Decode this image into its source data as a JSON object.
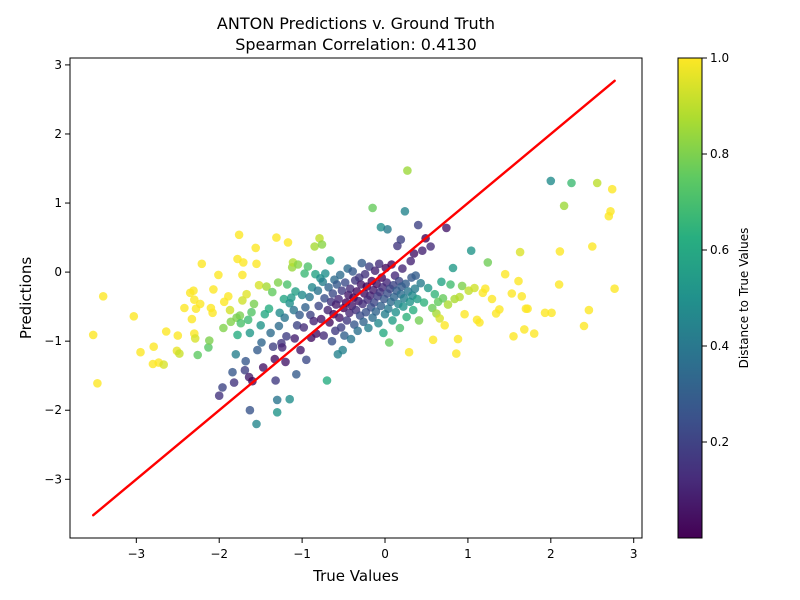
{
  "chart_data": {
    "type": "scatter",
    "title": "ANTON Predictions v. Ground Truth",
    "subtitle": "Spearman Correlation: 0.4130",
    "xlabel": "True Values",
    "ylabel": "Predictions",
    "xlim": [
      -3.8,
      3.1
    ],
    "ylim": [
      -3.85,
      3.1
    ],
    "xticks": [
      -3,
      -2,
      -1,
      0,
      1,
      2,
      3
    ],
    "xtick_labels": [
      "−3",
      "−2",
      "−1",
      "0",
      "1",
      "2",
      "3"
    ],
    "yticks": [
      -3,
      -2,
      -1,
      0,
      1,
      2,
      3
    ],
    "ytick_labels": [
      "−3",
      "−2",
      "−1",
      "0",
      "1",
      "2",
      "3"
    ],
    "grid": false,
    "colormap": "viridis",
    "point_alpha": 0.8,
    "colorbar": {
      "label": "Distance to True Values",
      "range": [
        0.0,
        1.0
      ],
      "ticks": [
        0.2,
        0.4,
        0.6,
        0.8,
        1.0
      ],
      "tick_labels": [
        "0.2",
        "0.4",
        "0.6",
        "0.8",
        "1.0"
      ]
    },
    "reference_line": {
      "x": [
        -3.52,
        2.77
      ],
      "y": [
        -3.52,
        2.77
      ],
      "color": "#ff0000"
    },
    "points": [
      [
        -3.52,
        -0.91
      ],
      [
        -3.47,
        -1.61
      ],
      [
        -3.4,
        -0.35
      ],
      [
        -3.03,
        -0.64
      ],
      [
        -2.95,
        -1.16
      ],
      [
        -2.8,
        -1.33
      ],
      [
        -2.79,
        -1.08
      ],
      [
        -2.73,
        -1.31
      ],
      [
        -2.67,
        -1.34
      ],
      [
        -2.64,
        -0.86
      ],
      [
        -2.5,
        -0.92
      ],
      [
        -2.51,
        -1.14
      ],
      [
        -2.48,
        -1.18
      ],
      [
        -2.42,
        -0.52
      ],
      [
        -2.35,
        -0.3
      ],
      [
        -2.33,
        -0.68
      ],
      [
        -2.31,
        -0.27
      ],
      [
        -2.3,
        -0.4
      ],
      [
        -2.3,
        -0.89
      ],
      [
        -2.29,
        -0.96
      ],
      [
        -2.28,
        -0.53
      ],
      [
        -2.26,
        -1.2
      ],
      [
        -2.23,
        -0.46
      ],
      [
        -2.21,
        0.12
      ],
      [
        -2.13,
        -1.09
      ],
      [
        -2.12,
        -0.99
      ],
      [
        -2.1,
        -0.52
      ],
      [
        -2.08,
        -0.59
      ],
      [
        -2.07,
        -0.25
      ],
      [
        -2.01,
        -0.04
      ],
      [
        -2.0,
        -1.79
      ],
      [
        -1.96,
        -1.67
      ],
      [
        -1.95,
        -0.81
      ],
      [
        -1.94,
        -0.43
      ],
      [
        -1.89,
        -0.35
      ],
      [
        -1.87,
        -0.55
      ],
      [
        -1.86,
        -0.72
      ],
      [
        -1.84,
        -1.45
      ],
      [
        -1.82,
        -1.6
      ],
      [
        -1.8,
        -1.19
      ],
      [
        -1.79,
        -0.66
      ],
      [
        -1.78,
        -0.91
      ],
      [
        -1.78,
        0.19
      ],
      [
        -1.76,
        0.54
      ],
      [
        -1.75,
        -0.63
      ],
      [
        -1.74,
        -0.74
      ],
      [
        -1.72,
        -0.41
      ],
      [
        -1.72,
        -0.04
      ],
      [
        -1.71,
        0.14
      ],
      [
        -1.69,
        -1.42
      ],
      [
        -1.68,
        -1.29
      ],
      [
        -1.67,
        -0.32
      ],
      [
        -1.65,
        -0.69
      ],
      [
        -1.64,
        -1.52
      ],
      [
        -1.63,
        -0.88
      ],
      [
        -1.63,
        -2.0
      ],
      [
        -1.61,
        -0.58
      ],
      [
        -1.6,
        -1.58
      ],
      [
        -1.58,
        -0.46
      ],
      [
        -1.56,
        0.35
      ],
      [
        -1.55,
        0.12
      ],
      [
        -1.55,
        -2.2
      ],
      [
        -1.54,
        -1.13
      ],
      [
        -1.52,
        -0.19
      ],
      [
        -1.5,
        -0.77
      ],
      [
        -1.49,
        -1.02
      ],
      [
        -1.47,
        -1.38
      ],
      [
        -1.45,
        -0.61
      ],
      [
        -1.43,
        -0.21
      ],
      [
        -1.4,
        -0.53
      ],
      [
        -1.38,
        -0.88
      ],
      [
        -1.36,
        -0.29
      ],
      [
        -1.35,
        -1.08
      ],
      [
        -1.33,
        -1.26
      ],
      [
        -1.32,
        -1.57
      ],
      [
        -1.31,
        0.5
      ],
      [
        -1.3,
        -1.85
      ],
      [
        -1.3,
        -2.03
      ],
      [
        -1.29,
        -0.15
      ],
      [
        -1.28,
        -0.78
      ],
      [
        -1.27,
        -0.59
      ],
      [
        -1.25,
        -1.03
      ],
      [
        -1.24,
        -1.09
      ],
      [
        -1.22,
        -0.39
      ],
      [
        -1.21,
        -0.66
      ],
      [
        -1.2,
        -1.3
      ],
      [
        -1.19,
        -0.93
      ],
      [
        -1.18,
        -0.18
      ],
      [
        -1.17,
        0.43
      ],
      [
        -1.15,
        -0.45
      ],
      [
        -1.15,
        -1.84
      ],
      [
        -1.13,
        -0.37
      ],
      [
        -1.12,
        0.07
      ],
      [
        -1.11,
        0.14
      ],
      [
        -1.1,
        -0.55
      ],
      [
        -1.09,
        -0.96
      ],
      [
        -1.08,
        -0.28
      ],
      [
        -1.07,
        -1.48
      ],
      [
        -1.06,
        -0.77
      ],
      [
        -1.05,
        0.11
      ],
      [
        -1.03,
        -0.62
      ],
      [
        -1.02,
        -1.13
      ],
      [
        -1.0,
        -0.33
      ],
      [
        -0.98,
        -0.8
      ],
      [
        -0.97,
        -0.02
      ],
      [
        -0.96,
        -0.51
      ],
      [
        -0.95,
        -1.27
      ],
      [
        -0.93,
        0.08
      ],
      [
        -0.91,
        -0.36
      ],
      [
        -0.9,
        -0.62
      ],
      [
        -0.89,
        -0.95
      ],
      [
        -0.88,
        -0.22
      ],
      [
        -0.86,
        -0.71
      ],
      [
        -0.85,
        0.37
      ],
      [
        -0.84,
        -0.03
      ],
      [
        -0.83,
        -0.89
      ],
      [
        -0.81,
        -0.27
      ],
      [
        -0.8,
        -0.49
      ],
      [
        -0.79,
        0.49
      ],
      [
        -0.78,
        -0.09
      ],
      [
        -0.77,
        -0.68
      ],
      [
        -0.76,
        0.4
      ],
      [
        -0.75,
        -0.14
      ],
      [
        -0.74,
        -0.92
      ],
      [
        -0.73,
        -0.38
      ],
      [
        -0.72,
        -0.02
      ],
      [
        -0.7,
        -1.57
      ],
      [
        -0.69,
        -0.55
      ],
      [
        -0.68,
        -0.22
      ],
      [
        -0.67,
        -0.73
      ],
      [
        -0.66,
        0.17
      ],
      [
        -0.65,
        -0.43
      ],
      [
        -0.64,
        -1.0
      ],
      [
        -0.63,
        -0.31
      ],
      [
        -0.62,
        -0.61
      ],
      [
        -0.61,
        -0.11
      ],
      [
        -0.6,
        -0.85
      ],
      [
        -0.59,
        -0.47
      ],
      [
        -0.58,
        -0.18
      ],
      [
        -0.57,
        -1.19
      ],
      [
        -0.56,
        -0.39
      ],
      [
        -0.55,
        -0.66
      ],
      [
        -0.54,
        -0.04
      ],
      [
        -0.53,
        -0.8
      ],
      [
        -0.52,
        -0.27
      ],
      [
        -0.51,
        -1.13
      ],
      [
        -0.5,
        -0.52
      ],
      [
        -0.49,
        -0.92
      ],
      [
        -0.48,
        -0.15
      ],
      [
        -0.47,
        -0.44
      ],
      [
        -0.46,
        -0.7
      ],
      [
        -0.45,
        0.05
      ],
      [
        -0.44,
        -0.33
      ],
      [
        -0.43,
        -0.59
      ],
      [
        -0.42,
        -0.24
      ],
      [
        -0.41,
        -0.97
      ],
      [
        -0.4,
        -0.49
      ],
      [
        -0.39,
        0.01
      ],
      [
        -0.38,
        -0.37
      ],
      [
        -0.37,
        -0.76
      ],
      [
        -0.36,
        -0.12
      ],
      [
        -0.35,
        -0.55
      ],
      [
        -0.34,
        -0.28
      ],
      [
        -0.33,
        -0.85
      ],
      [
        -0.32,
        -0.42
      ],
      [
        -0.31,
        -0.08
      ],
      [
        -0.3,
        -0.63
      ],
      [
        -0.29,
        -0.18
      ],
      [
        -0.28,
        0.13
      ],
      [
        -0.27,
        -0.46
      ],
      [
        -0.26,
        -0.72
      ],
      [
        -0.25,
        -0.31
      ],
      [
        -0.24,
        -0.03
      ],
      [
        -0.23,
        -0.58
      ],
      [
        -0.22,
        -0.21
      ],
      [
        -0.21,
        -0.4
      ],
      [
        -0.2,
        -0.81
      ],
      [
        -0.19,
        0.08
      ],
      [
        -0.18,
        -0.34
      ],
      [
        -0.17,
        -0.51
      ],
      [
        -0.16,
        -0.13
      ],
      [
        -0.15,
        -0.66
      ],
      [
        -0.15,
        0.93
      ],
      [
        -0.14,
        -0.26
      ],
      [
        -0.13,
        -0.44
      ],
      [
        -0.12,
        0.02
      ],
      [
        -0.11,
        -0.57
      ],
      [
        -0.1,
        -0.17
      ],
      [
        -0.09,
        -0.35
      ],
      [
        -0.08,
        -0.74
      ],
      [
        -0.07,
        0.12
      ],
      [
        -0.06,
        -0.29
      ],
      [
        -0.05,
        -0.49
      ],
      [
        -0.05,
        0.65
      ],
      [
        -0.04,
        -0.08
      ],
      [
        -0.03,
        -0.22
      ],
      [
        -0.02,
        -0.88
      ],
      [
        -0.01,
        -0.39
      ],
      [
        0.0,
        -0.61
      ],
      [
        0.01,
        0.06
      ],
      [
        0.02,
        -0.15
      ],
      [
        0.03,
        -0.31
      ],
      [
        0.03,
        0.62
      ],
      [
        0.04,
        -0.53
      ],
      [
        0.05,
        -1.02
      ],
      [
        0.06,
        -0.24
      ],
      [
        0.07,
        -0.43
      ],
      [
        0.08,
        0.11
      ],
      [
        0.09,
        -0.7
      ],
      [
        0.1,
        -0.19
      ],
      [
        0.11,
        -0.36
      ],
      [
        0.12,
        -0.05
      ],
      [
        0.13,
        -0.58
      ],
      [
        0.14,
        -0.27
      ],
      [
        0.15,
        0.38
      ],
      [
        0.16,
        -0.46
      ],
      [
        0.17,
        -0.13
      ],
      [
        0.18,
        -0.81
      ],
      [
        0.19,
        -0.32
      ],
      [
        0.19,
        0.47
      ],
      [
        0.2,
        -0.21
      ],
      [
        0.21,
        0.05
      ],
      [
        0.22,
        -0.5
      ],
      [
        0.23,
        -0.38
      ],
      [
        0.24,
        0.88
      ],
      [
        0.25,
        -0.17
      ],
      [
        0.26,
        -0.65
      ],
      [
        0.27,
        1.47
      ],
      [
        0.28,
        -0.28
      ],
      [
        0.29,
        -1.16
      ],
      [
        0.3,
        -0.43
      ],
      [
        0.31,
        0.16
      ],
      [
        0.32,
        -0.08
      ],
      [
        0.33,
        -0.34
      ],
      [
        0.34,
        -0.55
      ],
      [
        0.35,
        0.27
      ],
      [
        0.36,
        -0.24
      ],
      [
        0.37,
        -0.05
      ],
      [
        0.39,
        -0.39
      ],
      [
        0.4,
        0.68
      ],
      [
        0.41,
        -0.7
      ],
      [
        0.43,
        -0.16
      ],
      [
        0.45,
        0.31
      ],
      [
        0.47,
        -0.44
      ],
      [
        0.49,
        0.49
      ],
      [
        0.52,
        -0.23
      ],
      [
        0.55,
        0.37
      ],
      [
        0.57,
        -0.52
      ],
      [
        0.58,
        -0.98
      ],
      [
        0.6,
        -0.32
      ],
      [
        0.62,
        -0.6
      ],
      [
        0.64,
        -0.43
      ],
      [
        0.66,
        -0.67
      ],
      [
        0.68,
        -0.14
      ],
      [
        0.7,
        -0.38
      ],
      [
        0.72,
        -0.77
      ],
      [
        0.74,
        0.64
      ],
      [
        0.76,
        -0.47
      ],
      [
        0.79,
        -0.18
      ],
      [
        0.82,
        0.06
      ],
      [
        0.84,
        -0.39
      ],
      [
        0.86,
        -1.18
      ],
      [
        0.88,
        -0.97
      ],
      [
        0.9,
        -0.36
      ],
      [
        0.93,
        -0.2
      ],
      [
        0.96,
        -0.61
      ],
      [
        1.01,
        -0.27
      ],
      [
        1.04,
        0.31
      ],
      [
        1.08,
        -0.23
      ],
      [
        1.11,
        -0.69
      ],
      [
        1.14,
        -0.73
      ],
      [
        1.18,
        -0.3
      ],
      [
        1.21,
        -0.24
      ],
      [
        1.24,
        0.14
      ],
      [
        1.29,
        -0.39
      ],
      [
        1.34,
        -0.6
      ],
      [
        1.38,
        -0.54
      ],
      [
        1.45,
        -0.03
      ],
      [
        1.53,
        -0.31
      ],
      [
        1.55,
        -0.93
      ],
      [
        1.61,
        -0.13
      ],
      [
        1.63,
        0.29
      ],
      [
        1.65,
        -0.35
      ],
      [
        1.68,
        -0.83
      ],
      [
        1.7,
        -0.53
      ],
      [
        1.72,
        -0.53
      ],
      [
        1.8,
        -0.89
      ],
      [
        1.93,
        -0.59
      ],
      [
        2.0,
        1.32
      ],
      [
        2.01,
        -0.59
      ],
      [
        2.1,
        -0.18
      ],
      [
        2.11,
        0.3
      ],
      [
        2.16,
        0.96
      ],
      [
        2.25,
        1.29
      ],
      [
        2.4,
        -0.78
      ],
      [
        2.46,
        -0.55
      ],
      [
        2.5,
        0.37
      ],
      [
        2.56,
        1.29
      ],
      [
        2.7,
        0.81
      ],
      [
        2.72,
        0.88
      ],
      [
        2.74,
        1.2
      ],
      [
        2.77,
        -0.24
      ]
    ]
  }
}
